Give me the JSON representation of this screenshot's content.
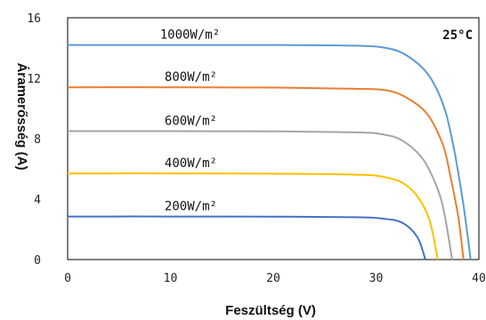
{
  "chart_data": {
    "type": "line",
    "title": "",
    "xlabel": "Feszültség (V)",
    "ylabel": "Áramerősség (A)",
    "annotation": "25°C",
    "xlim": [
      0,
      40
    ],
    "ylim": [
      0,
      16
    ],
    "xticks": [
      0,
      10,
      20,
      30,
      40
    ],
    "yticks": [
      0,
      4,
      8,
      12,
      16
    ],
    "grid": false,
    "series": [
      {
        "name": "1000W/m²",
        "color": "#5B9BD5",
        "x": [
          0,
          10,
          20,
          28,
          31,
          33,
          35,
          36.5,
          37.5,
          38.5,
          39.2
        ],
        "y": [
          14.2,
          14.2,
          14.2,
          14.15,
          14.0,
          13.5,
          12.3,
          10.3,
          7.6,
          3.6,
          0
        ]
      },
      {
        "name": "800W/m²",
        "color": "#ED7D31",
        "x": [
          0,
          10,
          20,
          28,
          31,
          33,
          35,
          36.5,
          37.2,
          38.0,
          38.5
        ],
        "y": [
          11.4,
          11.4,
          11.38,
          11.3,
          11.2,
          10.7,
          9.6,
          7.6,
          5.6,
          2.8,
          0
        ]
      },
      {
        "name": "600W/m²",
        "color": "#A5A5A5",
        "x": [
          0,
          10,
          20,
          28,
          30.5,
          32.5,
          34.5,
          35.8,
          36.6,
          37.4
        ],
        "y": [
          8.5,
          8.5,
          8.48,
          8.42,
          8.3,
          7.9,
          6.7,
          5.0,
          3.2,
          0
        ]
      },
      {
        "name": "400W/m²",
        "color": "#FFC000",
        "x": [
          0,
          10,
          20,
          28,
          30.5,
          32.5,
          34.0,
          35.2,
          36.0
        ],
        "y": [
          5.7,
          5.7,
          5.68,
          5.62,
          5.5,
          5.1,
          4.2,
          2.6,
          0
        ]
      },
      {
        "name": "200W/m²",
        "color": "#4472C4",
        "x": [
          0,
          10,
          20,
          28,
          30.5,
          32.5,
          34.0,
          34.8
        ],
        "y": [
          2.85,
          2.85,
          2.84,
          2.8,
          2.72,
          2.45,
          1.5,
          0
        ]
      }
    ]
  }
}
